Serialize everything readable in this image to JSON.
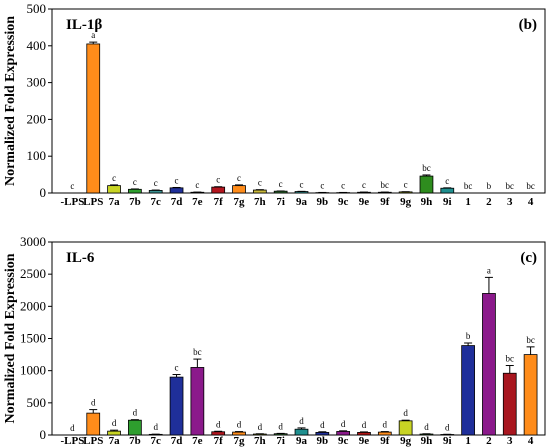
{
  "chart_data": [
    {
      "type": "bar",
      "title": "IL-1β",
      "panel_label": "(b)",
      "ylabel": "Normalized Fold Expression",
      "xlabel": "",
      "ylim": [
        0,
        500
      ],
      "yticks": [
        0,
        100,
        200,
        300,
        400,
        500
      ],
      "grid": false,
      "categories": [
        "-LPS",
        "LPS",
        "7a",
        "7b",
        "7c",
        "7d",
        "7e",
        "7f",
        "7g",
        "7h",
        "7i",
        "9a",
        "9b",
        "9c",
        "9e",
        "9f",
        "9g",
        "9h",
        "9i",
        "1",
        "2",
        "3",
        "4"
      ],
      "values": [
        0,
        405,
        20,
        10,
        7,
        14,
        2,
        16,
        20,
        8,
        5,
        4,
        1,
        1,
        2,
        2,
        3,
        46,
        13,
        0.5,
        0.5,
        0.5,
        0.5
      ],
      "errors": [
        0,
        5,
        2,
        1,
        1,
        1,
        0.5,
        1,
        2,
        1,
        0.5,
        0.5,
        0.5,
        0.5,
        0.5,
        0.5,
        0.5,
        3,
        1,
        0,
        0,
        0,
        0
      ],
      "significance": [
        "c",
        "a",
        "c",
        "c",
        "c",
        "c",
        "c",
        "c",
        "c",
        "c",
        "c",
        "c",
        "c",
        "c",
        "c",
        "bc",
        "c",
        "bc",
        "c",
        "bc",
        "b",
        "bc",
        "bc"
      ],
      "colors": [
        "#ffffff",
        "#ff8c1a",
        "#c8d424",
        "#2e9e2e",
        "#3a8f8f",
        "#1f2f9a",
        "#c63c3c",
        "#b3161f",
        "#ff8c1a",
        "#c8b83a",
        "#2e6e2e",
        "#2f8f8f",
        "#2a2f8f",
        "#7a1b7a",
        "#b01515",
        "#ff8c1a",
        "#c8d424",
        "#2e8c1e",
        "#1f8f8f",
        "#1f2f9a",
        "#8b1a8b",
        "#a8161f",
        "#ff8c1a"
      ]
    },
    {
      "type": "bar",
      "title": "IL-6",
      "panel_label": "(c)",
      "ylabel": "Normalized Fold Expression",
      "xlabel": "",
      "ylim": [
        0,
        3000
      ],
      "yticks": [
        0,
        500,
        1000,
        1500,
        2000,
        2500,
        3000
      ],
      "grid": false,
      "categories": [
        "-LPS",
        "LPS",
        "7a",
        "7b",
        "7c",
        "7d",
        "7e",
        "7f",
        "7g",
        "7h",
        "7i",
        "9a",
        "9b",
        "9c",
        "9e",
        "9f",
        "9g",
        "9h",
        "9i",
        "1",
        "2",
        "3",
        "4"
      ],
      "values": [
        1,
        340,
        60,
        230,
        10,
        900,
        1050,
        50,
        45,
        15,
        20,
        90,
        40,
        55,
        40,
        45,
        220,
        15,
        8,
        1390,
        2200,
        960,
        1250
      ],
      "errors": [
        0,
        55,
        15,
        8,
        3,
        40,
        130,
        8,
        8,
        4,
        5,
        20,
        10,
        10,
        8,
        8,
        10,
        4,
        3,
        40,
        250,
        120,
        120
      ],
      "significance": [
        "d",
        "d",
        "d",
        "d",
        "d",
        "c",
        "bc",
        "d",
        "d",
        "d",
        "d",
        "d",
        "d",
        "d",
        "d",
        "d",
        "d",
        "d",
        "d",
        "b",
        "a",
        "bc",
        "bc"
      ],
      "colors": [
        "#ffffff",
        "#ff8c1a",
        "#c8d424",
        "#2e9e2e",
        "#1f8f8f",
        "#1f2f9a",
        "#8b1a8b",
        "#b3161f",
        "#ff8c1a",
        "#c8d424",
        "#2e6e2e",
        "#1f8f8f",
        "#1f2f9a",
        "#8b1a8b",
        "#b01515",
        "#ff8c1a",
        "#c8d424",
        "#2e8c1e",
        "#1f8f8f",
        "#1f2f9a",
        "#8b1a8b",
        "#a8161f",
        "#ff8c1a"
      ]
    }
  ]
}
